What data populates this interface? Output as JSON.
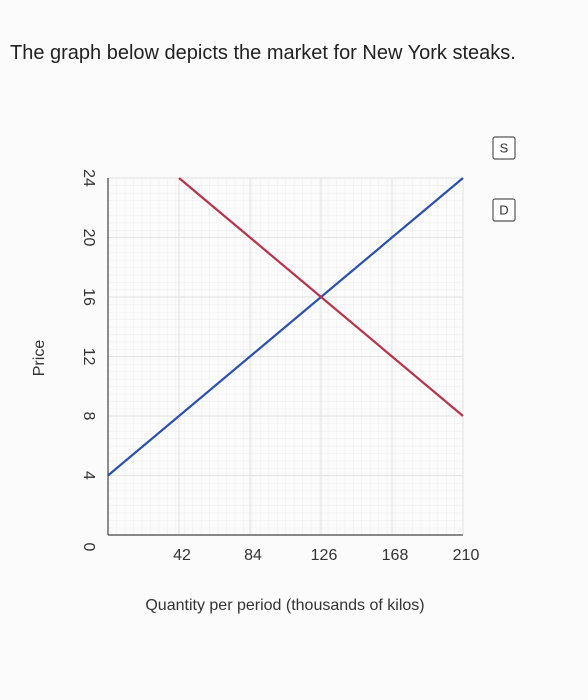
{
  "header": {
    "title": "The graph below depicts the market for New York steaks."
  },
  "chart_data": {
    "type": "line",
    "xlabel": "Quantity per period (thousands of kilos)",
    "ylabel": "Price",
    "xlim": [
      0,
      210
    ],
    "ylim": [
      0,
      24
    ],
    "xticks": [
      42,
      84,
      126,
      168,
      210
    ],
    "yticks": [
      0,
      4,
      8,
      12,
      16,
      20,
      24
    ],
    "grid": true,
    "series": [
      {
        "name": "S",
        "color": "#2a4fb0",
        "x": [
          0,
          210
        ],
        "values": [
          4,
          24
        ]
      },
      {
        "name": "D",
        "color": "#b8324a",
        "x": [
          42,
          210
        ],
        "values": [
          24,
          8
        ]
      }
    ]
  }
}
